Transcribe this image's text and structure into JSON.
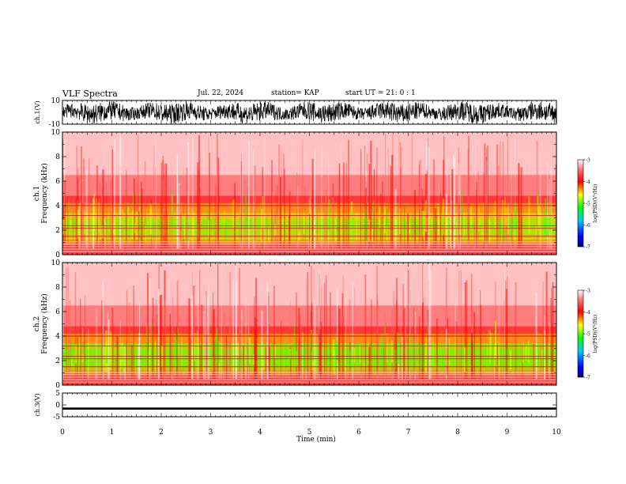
{
  "header": {
    "title": "VLF Spectra",
    "date": "Jul. 22, 2024",
    "station": "station= KAP",
    "start": "start UT = 21: 0 : 1"
  },
  "chart_data": [
    {
      "type": "line",
      "ylabel": "ch.1(V)",
      "ylim": [
        -10,
        10
      ],
      "ytick_labels": [
        "10",
        "-10"
      ],
      "note": "dense waveform spanning roughly -9 to +9 V"
    },
    {
      "type": "heatmap",
      "ylabel_line1": "ch.1",
      "ylabel_line2": "Frequency (kHz)",
      "ylim": [
        0,
        10
      ],
      "ytick_labels": [
        "0",
        "2",
        "4",
        "6",
        "8",
        "10"
      ],
      "colorbar": {
        "label": "log(PSD)(V²/Hz)",
        "range": [
          -7,
          -3
        ],
        "tick_labels": [
          "-3",
          "-4",
          "-5",
          "-6",
          "-7"
        ]
      }
    },
    {
      "type": "heatmap",
      "ylabel_line1": "ch.2",
      "ylabel_line2": "Frequency (kHz)",
      "ylim": [
        0,
        10
      ],
      "ytick_labels": [
        "0",
        "2",
        "4",
        "6",
        "8",
        "10"
      ],
      "colorbar": {
        "label": "log(PSD)(V²/Hz)",
        "range": [
          -7,
          -3
        ],
        "tick_labels": [
          "-3",
          "-4",
          "-5",
          "-6",
          "-7"
        ]
      }
    },
    {
      "type": "line",
      "ylabel": "ch.3(V)",
      "ylim": [
        -5,
        5
      ],
      "ytick_labels": [
        "5",
        "0",
        "-5"
      ],
      "note": "flat trace near -1.5 V"
    }
  ],
  "xaxis": {
    "label": "Time (min)",
    "range": [
      0,
      10
    ],
    "tick_labels": [
      "0",
      "1",
      "2",
      "3",
      "4",
      "5",
      "6",
      "7",
      "8",
      "9",
      "10"
    ]
  },
  "colors": {
    "spectrogram_high": "#ff0000",
    "spectrogram_mid": "#ffff00",
    "spectrogram_low": "#00ff00",
    "background": "#ffffff"
  }
}
